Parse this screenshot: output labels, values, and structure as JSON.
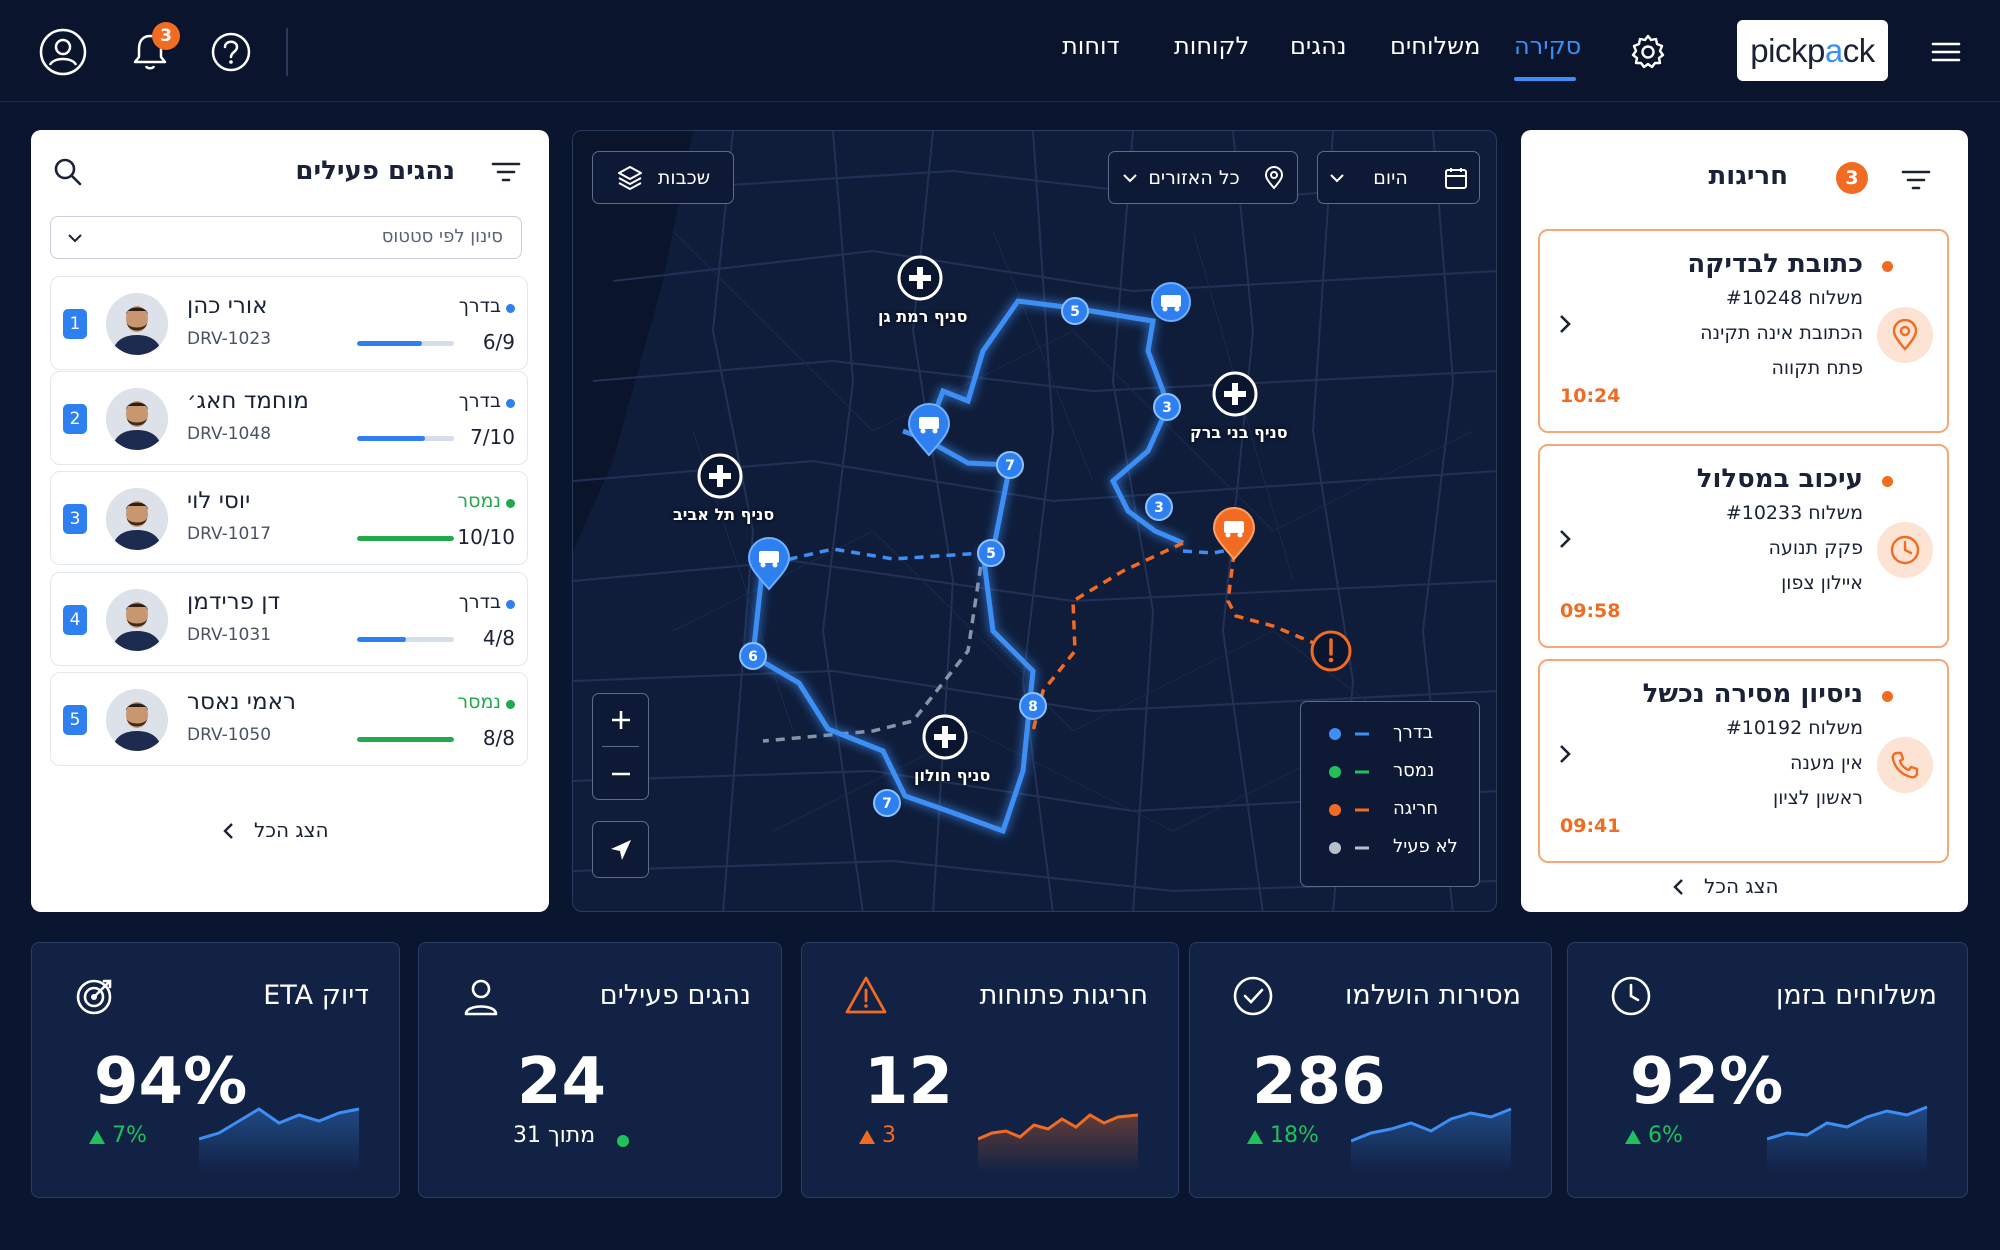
{
  "topbar": {
    "notification_count": "3",
    "nav": [
      {
        "label": "סקירה",
        "active": true
      },
      {
        "label": "משלוחים"
      },
      {
        "label": "נהגים"
      },
      {
        "label": "לקוחות"
      },
      {
        "label": "דוחות"
      }
    ],
    "logo_text_1": "pick",
    "logo_text_2": "p",
    "logo_text_3": "a",
    "logo_text_4": "ck"
  },
  "drivers": {
    "title": "נהגים פעילים",
    "filter_placeholder": "סינון לפי סטטוס",
    "show_all": "הצג הכל",
    "items": [
      {
        "num": "1",
        "name": "אורי כהן",
        "id": "DRV-1023",
        "status": "בדרך",
        "status_color": "#2e7ff0",
        "count": "6/9",
        "progress": 0.667
      },
      {
        "num": "2",
        "name": "מוחמד חאג׳",
        "id": "DRV-1048",
        "status": "בדרך",
        "status_color": "#2e7ff0",
        "count": "7/10",
        "progress": 0.7
      },
      {
        "num": "3",
        "name": "יוסי לוי",
        "id": "DRV-1017",
        "status": "נמסר",
        "status_color": "#21a94b",
        "count": "10/10",
        "progress": 1.0
      },
      {
        "num": "4",
        "name": "דן פרידמן",
        "id": "DRV-1031",
        "status": "בדרך",
        "status_color": "#2e7ff0",
        "count": "4/8",
        "progress": 0.5
      },
      {
        "num": "5",
        "name": "ראמי נאסר",
        "id": "DRV-1050",
        "status": "נמסר",
        "status_color": "#21a94b",
        "count": "8/8",
        "progress": 1.0
      }
    ]
  },
  "map": {
    "layers_label": "שכבות",
    "regions_label": "כל האזורים",
    "date_label": "היום",
    "branches": [
      "סניף רמת גן",
      "סניף בני ברק",
      "סניף תל אביב",
      "סניף חולון"
    ],
    "legend": [
      {
        "label": "בדרך",
        "color": "#3d8ff5"
      },
      {
        "label": "נמסר",
        "color": "#21c05a"
      },
      {
        "label": "חריגה",
        "color": "#f26b22"
      },
      {
        "label": "לא פעיל",
        "color": "#b8bfcc"
      }
    ],
    "stops": [
      "5",
      "3",
      "7",
      "3",
      "5",
      "6",
      "7",
      "8"
    ]
  },
  "incidents": {
    "title": "חריגות",
    "count": "3",
    "show_all": "הצג הכל",
    "items": [
      {
        "title": "כתובת לבדיקה",
        "shipment": "משלוח #10248",
        "reason": "הכתובת אינה תקינה",
        "place": "פתח תקווה",
        "time": "10:24",
        "icon": "location-pin-icon"
      },
      {
        "title": "עיכוב במסלול",
        "shipment": "משלוח #10233",
        "reason": "פקק תנועה",
        "place": "איילון צפון",
        "time": "09:58",
        "icon": "clock-icon"
      },
      {
        "title": "ניסיון מסירה נכשל",
        "shipment": "משלוח #10192",
        "reason": "אין מענה",
        "place": "ראשון לציון",
        "time": "09:41",
        "icon": "phone-icon"
      }
    ]
  },
  "stats": [
    {
      "title": "משלוחים בזמן",
      "value": "92%",
      "delta": "6%",
      "icon": "clock-icon",
      "color": "#21c05a"
    },
    {
      "title": "מסירות הושלמו",
      "value": "286",
      "delta": "18%",
      "icon": "check-circle-icon",
      "color": "#21c05a"
    },
    {
      "title": "חריגות פתוחות",
      "value": "12",
      "delta": "3",
      "icon": "warning-icon",
      "color": "#f26b22"
    },
    {
      "title": "נהגים פעילים",
      "value": "24",
      "delta": "מתוך 31",
      "icon": "user-icon",
      "color": "#21c05a"
    },
    {
      "title": "דיוק ETA",
      "value": "94%",
      "delta": "7%",
      "icon": "target-icon",
      "color": "#21c05a"
    }
  ]
}
